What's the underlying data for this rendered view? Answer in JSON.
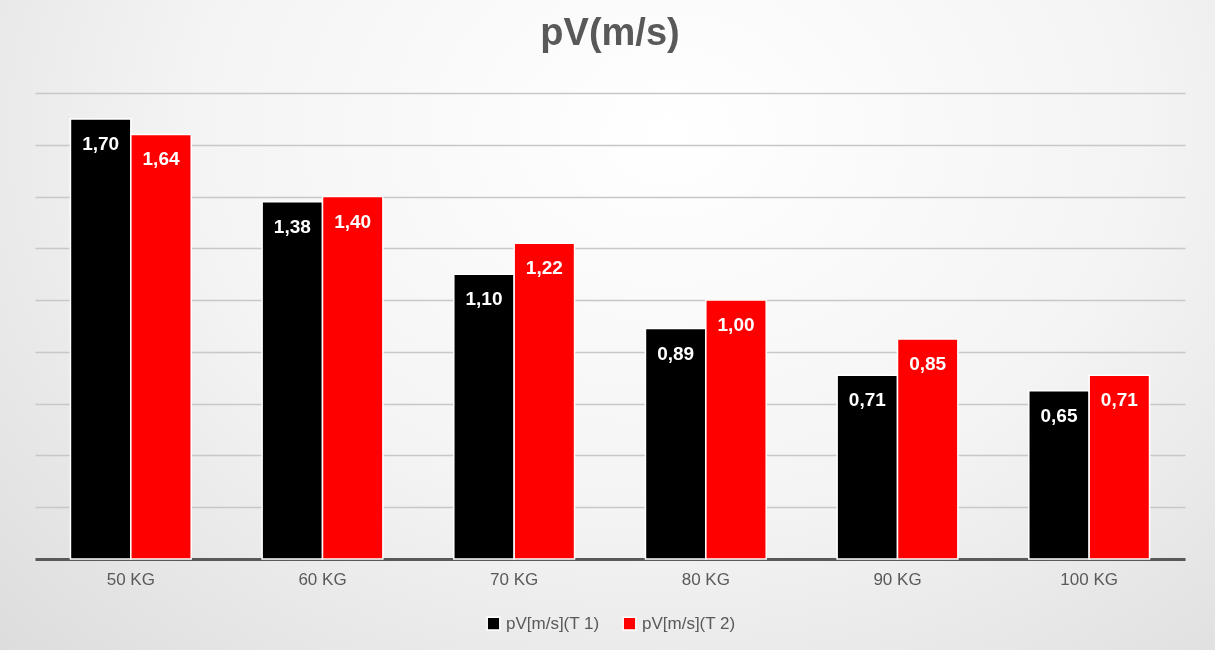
{
  "chart_data": {
    "type": "bar",
    "title": "pV(m/s)",
    "categories": [
      "50 KG",
      "60 KG",
      "70 KG",
      "80 KG",
      "90 KG",
      "100 KG"
    ],
    "series": [
      {
        "name": "pV[m/s](T 1)",
        "color": "#000000",
        "values": [
          1.7,
          1.38,
          1.1,
          0.89,
          0.71,
          0.65
        ],
        "value_labels": [
          "1,70",
          "1,38",
          "1,10",
          "0,89",
          "0,71",
          "0,65"
        ]
      },
      {
        "name": "pV[m/s](T 2)",
        "color": "#ff0000",
        "values": [
          1.64,
          1.4,
          1.22,
          1.0,
          0.85,
          0.71
        ],
        "value_labels": [
          "1,64",
          "1,40",
          "1,22",
          "1,00",
          "0,85",
          "0,71"
        ]
      }
    ],
    "grid": "y",
    "tick_labels": "x",
    "legend": "bottom"
  }
}
